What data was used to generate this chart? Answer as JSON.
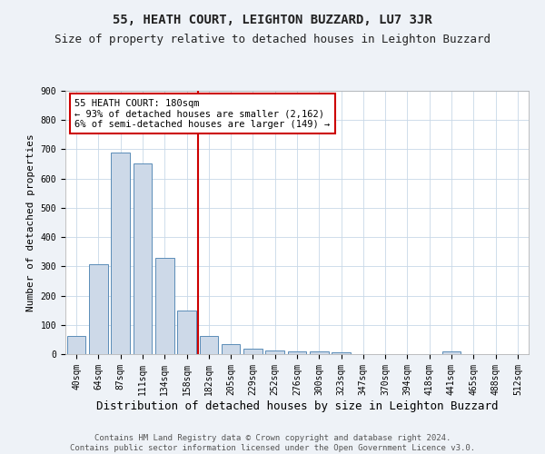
{
  "title": "55, HEATH COURT, LEIGHTON BUZZARD, LU7 3JR",
  "subtitle": "Size of property relative to detached houses in Leighton Buzzard",
  "xlabel": "Distribution of detached houses by size in Leighton Buzzard",
  "ylabel": "Number of detached properties",
  "footer_line1": "Contains HM Land Registry data © Crown copyright and database right 2024.",
  "footer_line2": "Contains public sector information licensed under the Open Government Licence v3.0.",
  "categories": [
    "40sqm",
    "64sqm",
    "87sqm",
    "111sqm",
    "134sqm",
    "158sqm",
    "182sqm",
    "205sqm",
    "229sqm",
    "252sqm",
    "276sqm",
    "300sqm",
    "323sqm",
    "347sqm",
    "370sqm",
    "394sqm",
    "418sqm",
    "441sqm",
    "465sqm",
    "488sqm",
    "512sqm"
  ],
  "values": [
    63,
    307,
    688,
    651,
    330,
    150,
    63,
    33,
    20,
    11,
    9,
    8,
    5,
    0,
    0,
    0,
    0,
    8,
    0,
    0,
    0
  ],
  "bar_color": "#cdd9e8",
  "bar_edge_color": "#5b8db8",
  "property_line_x": 6,
  "property_line_color": "#cc0000",
  "annotation_text": "55 HEATH COURT: 180sqm\n← 93% of detached houses are smaller (2,162)\n6% of semi-detached houses are larger (149) →",
  "annotation_box_color": "#ffffff",
  "annotation_box_edge_color": "#cc0000",
  "ylim": [
    0,
    900
  ],
  "yticks": [
    0,
    100,
    200,
    300,
    400,
    500,
    600,
    700,
    800,
    900
  ],
  "background_color": "#eef2f7",
  "plot_background_color": "#ffffff",
  "grid_color": "#c8d8e8",
  "title_fontsize": 10,
  "subtitle_fontsize": 9,
  "xlabel_fontsize": 9,
  "ylabel_fontsize": 8,
  "tick_fontsize": 7,
  "annotation_fontsize": 7.5,
  "footer_fontsize": 6.5
}
